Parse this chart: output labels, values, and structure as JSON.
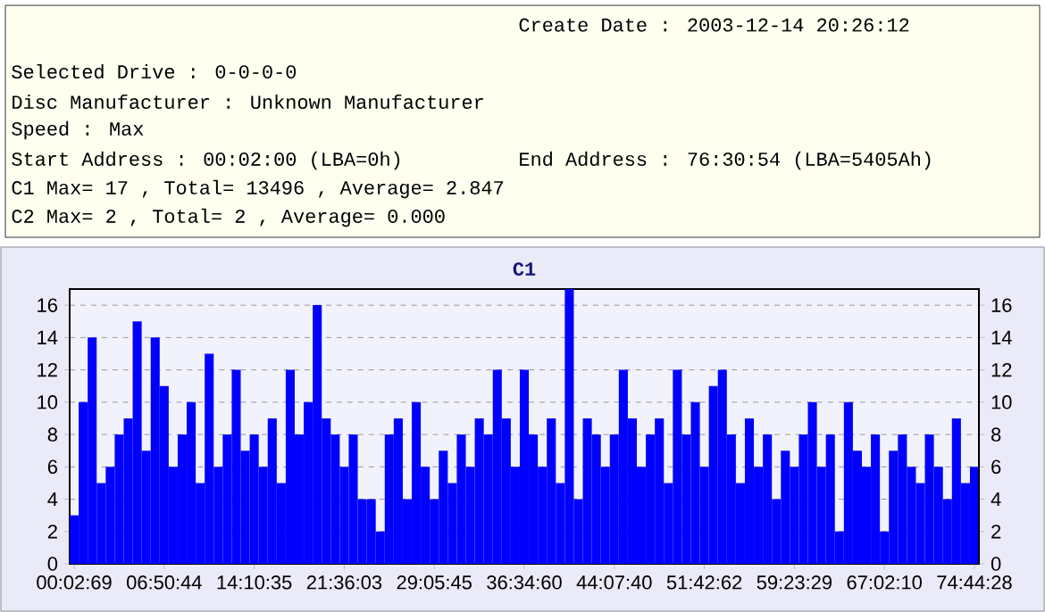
{
  "chart_data": {
    "type": "bar",
    "title": "C1",
    "annotations": [
      "Create Date : 2003-12-14 20:26:12",
      "Selected Drive : 0-0-0-0",
      "Disc Manufacturer : Unknown Manufacturer",
      "Speed : Max",
      "Start Address : 00:02:00 (LBA=0h)",
      "End Address : 76:30:54 (LBA=5405Ah)",
      "C1 Max= 17 , Total= 13496 , Average= 2.847",
      "C2 Max= 2 , Total= 2 , Average= 0.000"
    ],
    "categories": [
      "00:02:69",
      null,
      null,
      null,
      null,
      null,
      null,
      null,
      null,
      null,
      "06:50:44",
      null,
      null,
      null,
      null,
      null,
      null,
      null,
      null,
      null,
      "14:10:35",
      null,
      null,
      null,
      null,
      null,
      null,
      null,
      null,
      null,
      "21:36:03",
      null,
      null,
      null,
      null,
      null,
      null,
      null,
      null,
      null,
      "29:05:45",
      null,
      null,
      null,
      null,
      null,
      null,
      null,
      null,
      null,
      "36:34:60",
      null,
      null,
      null,
      null,
      null,
      null,
      null,
      null,
      null,
      "44:07:40",
      null,
      null,
      null,
      null,
      null,
      null,
      null,
      null,
      null,
      "51:42:62",
      null,
      null,
      null,
      null,
      null,
      null,
      null,
      null,
      null,
      "59:23:29",
      null,
      null,
      null,
      null,
      null,
      null,
      null,
      null,
      null,
      "67:02:10",
      null,
      null,
      null,
      null,
      null,
      null,
      null,
      null,
      null,
      "74:44:28"
    ],
    "values": [
      3,
      10,
      14,
      5,
      6,
      8,
      9,
      15,
      7,
      14,
      11,
      6,
      8,
      10,
      5,
      13,
      6,
      8,
      12,
      7,
      8,
      6,
      9,
      5,
      12,
      8,
      10,
      16,
      9,
      8,
      6,
      8,
      4,
      4,
      2,
      8,
      9,
      4,
      10,
      6,
      4,
      7,
      5,
      8,
      6,
      9,
      8,
      12,
      9,
      6,
      12,
      8,
      6,
      9,
      5,
      17,
      4,
      9,
      8,
      6,
      8,
      12,
      9,
      6,
      8,
      9,
      5,
      12,
      8,
      10,
      6,
      11,
      12,
      8,
      5,
      9,
      6,
      8,
      4,
      7,
      6,
      8,
      10,
      6,
      8,
      2,
      10,
      7,
      6,
      8,
      2,
      7,
      8,
      6,
      5,
      8,
      6,
      4,
      9,
      5,
      6
    ],
    "color": "#0000ff",
    "ylim": [
      0,
      17
    ],
    "yticks": [
      0,
      2,
      4,
      6,
      8,
      10,
      12,
      14,
      16
    ],
    "y2lim": [
      0,
      17
    ],
    "y2ticks": [
      0,
      2,
      4,
      6,
      8,
      10,
      12,
      14,
      16
    ],
    "grid": "y",
    "line_style": "dashed"
  }
}
